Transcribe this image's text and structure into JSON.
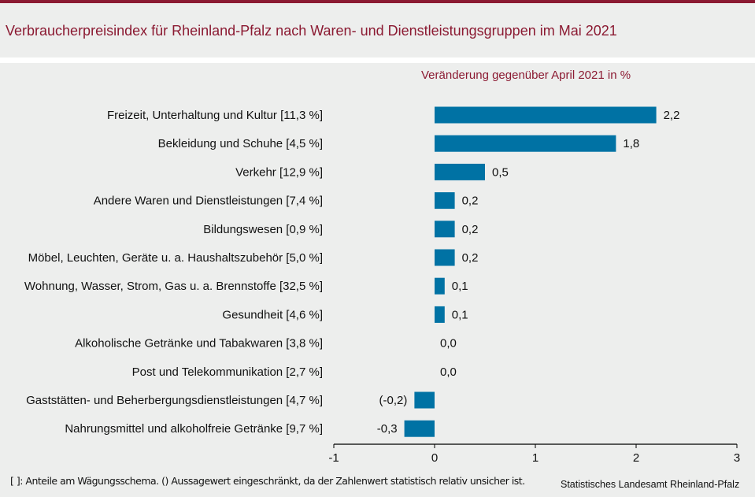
{
  "header": {
    "title": "Verbraucherpreisindex für Rheinland-Pfalz nach Waren- und Dienstleistungsgruppen im Mai 2021"
  },
  "colors": {
    "brand": "#8b1a32",
    "bar": "#0072a4",
    "background": "#edeeed"
  },
  "chart_data": {
    "type": "bar",
    "orientation": "horizontal",
    "title": "Verbraucherpreisindex für Rheinland-Pfalz nach Waren- und Dienstleistungsgruppen im Mai 2021",
    "subtitle": "Veränderung gegenüber April 2021 in %",
    "xlabel": "",
    "ylabel": "",
    "xlim": [
      -1,
      3
    ],
    "xticks": [
      -1,
      0,
      1,
      2,
      3
    ],
    "xtick_labels": [
      "-1",
      "0",
      "1",
      "2",
      "3"
    ],
    "grid": false,
    "legend": "none",
    "categories": [
      "Freizeit, Unterhaltung und Kultur [11,3 %]",
      "Bekleidung und Schuhe [4,5 %]",
      "Verkehr [12,9 %]",
      "Andere Waren und Dienstleistungen [7,4 %]",
      "Bildungswesen [0,9 %]",
      "Möbel, Leuchten, Geräte u. a. Haushaltszubehör [5,0 %]",
      "Wohnung, Wasser, Strom, Gas u. a. Brennstoffe [32,5 %]",
      "Gesundheit [4,6 %]",
      "Alkoholische Getränke und Tabakwaren [3,8 %]",
      "Post und Telekommunikation [2,7 %]",
      "Gaststätten- und Beherbergungsdienstleistungen [4,7 %]",
      "Nahrungsmittel und alkoholfreie Getränke [9,7 %]"
    ],
    "values": [
      2.2,
      1.8,
      0.5,
      0.2,
      0.2,
      0.2,
      0.1,
      0.1,
      0.0,
      0.0,
      -0.2,
      -0.3
    ],
    "value_labels": [
      "2,2",
      "1,8",
      "0,5",
      "0,2",
      "0,2",
      "0,2",
      "0,1",
      "0,1",
      "0,0",
      "0,0",
      "(-0,2)",
      "-0,3"
    ]
  },
  "footer": {
    "footnote": "[ ]: Anteile am Wägungsschema. () Aussagewert eingeschränkt, da der Zahlenwert statistisch relativ unsicher ist.",
    "source": "Statistisches Landesamt Rheinland-Pfalz"
  }
}
